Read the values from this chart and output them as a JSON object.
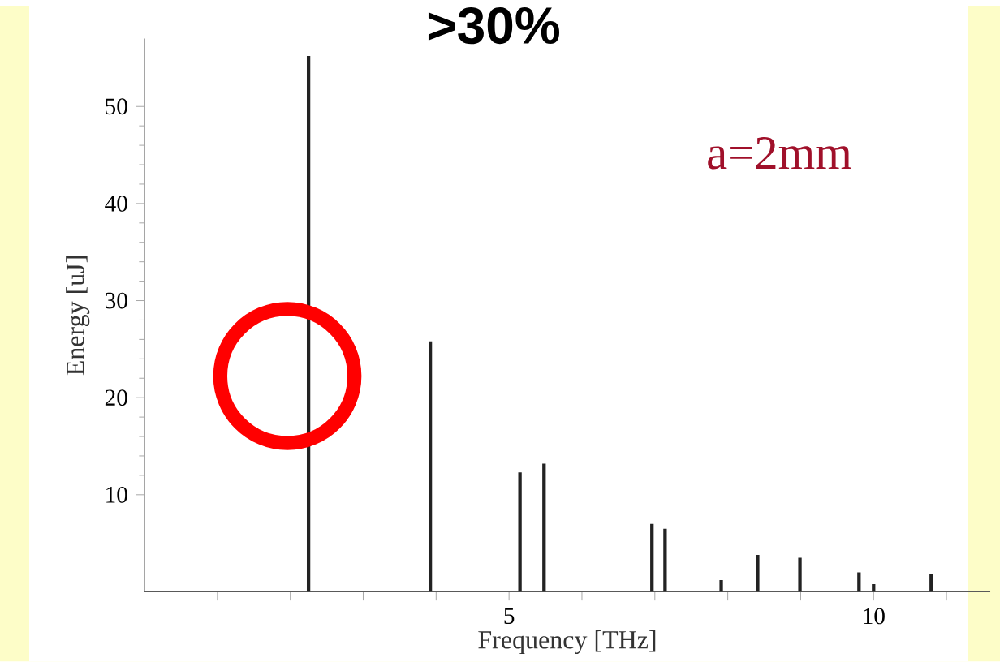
{
  "chart_data": {
    "type": "bar",
    "title": ">30%",
    "xlabel": "Frequency [THz]",
    "ylabel": "Energy [uJ]",
    "annotations": [
      "a=2mm"
    ],
    "x": [
      2.25,
      3.92,
      5.15,
      5.48,
      6.96,
      7.14,
      7.91,
      8.41,
      8.99,
      9.8,
      10.0,
      10.79
    ],
    "values": [
      55.2,
      25.8,
      12.3,
      13.2,
      7.0,
      6.5,
      1.2,
      3.8,
      3.5,
      2.0,
      0.8,
      1.8
    ],
    "color": "#222222",
    "xlim": [
      0,
      11.6
    ],
    "ylim": [
      0,
      57
    ],
    "xticks": [
      {
        "value": 1,
        "label": null
      },
      {
        "value": 2,
        "label": null
      },
      {
        "value": 3,
        "label": null
      },
      {
        "value": 4,
        "label": null
      },
      5,
      {
        "value": 6,
        "label": null
      },
      {
        "value": 7,
        "label": null
      },
      {
        "value": 8,
        "label": null
      },
      {
        "value": 9,
        "label": null
      },
      10,
      {
        "value": 11,
        "label": null
      }
    ],
    "yticks": [
      10,
      20,
      30,
      40,
      50
    ],
    "grid": false
  }
}
